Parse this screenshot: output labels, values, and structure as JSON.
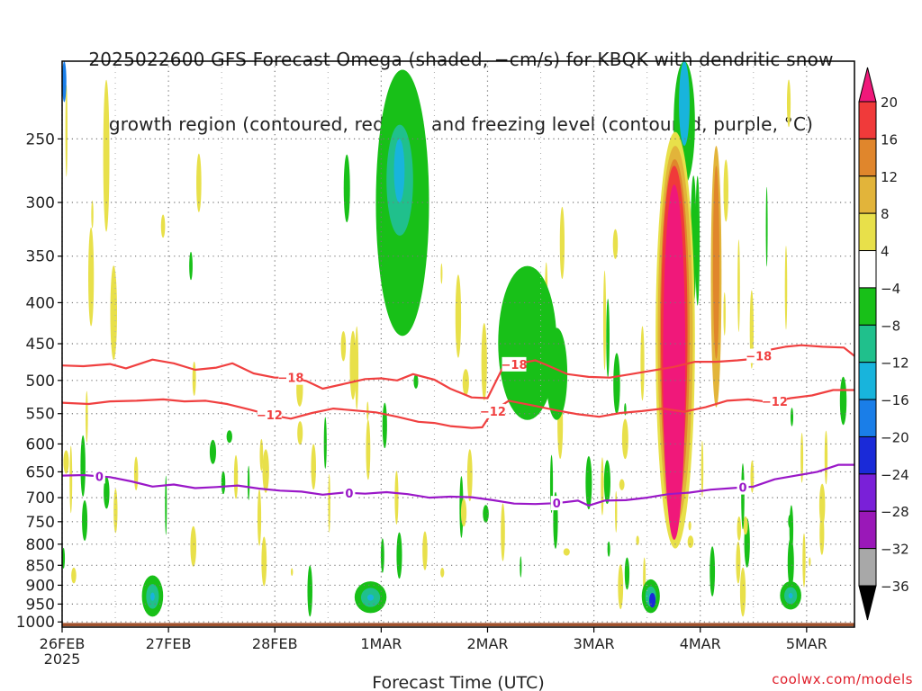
{
  "title_lines": [
    "2025022600 GFS Forecast Omega (shaded, −cm/s) for KBQK with dendritic snow",
    "growth region (contoured, red, °C) and freezing level (contoured, purple, °C)"
  ],
  "credit": "coolwx.com/models",
  "colors": {
    "white": "#ffffff",
    "yellow_4_8": "#e8e04a",
    "gold_8_12": "#e2b43a",
    "orange_12_16": "#e0862c",
    "red_16_20": "#f03a3a",
    "magenta_gt20": "#f0187a",
    "green_m4_m8": "#18c018",
    "seagreen_m8_m12": "#20c08c",
    "cyan_m12_m16": "#18b4dc",
    "blue_m16_m20": "#1a7ee8",
    "darkblue_m20_m24": "#1a2ad8",
    "purple_m24_m28": "#7a20d8",
    "violet_m28_m32": "#9a18b8",
    "gray_m32_m36": "#a8a8a8",
    "black_lt_m36": "#000000",
    "dendritic_line": "#f04040",
    "freezing_line": "#9a18c8",
    "ground": "#a0522d",
    "grid": "#777777"
  },
  "chart_data": {
    "type": "heatmap",
    "title": "2025022600 GFS Forecast Omega (shaded, −cm/s) for KBQK with dendritic snow growth region (contoured, red, °C) and freezing level (contoured, purple, °C)",
    "xlabel": "Forecast Time (UTC)",
    "ylabel": "",
    "x_ticks": [
      "26FEB",
      "27FEB",
      "28FEB",
      "1MAR",
      "2MAR",
      "3MAR",
      "4MAR",
      "5MAR"
    ],
    "x_tick_sub": "2025",
    "x_range_days": [
      0,
      7.45
    ],
    "y_ticks": [
      250,
      300,
      350,
      400,
      450,
      500,
      550,
      600,
      650,
      700,
      750,
      800,
      850,
      900,
      950,
      1000
    ],
    "y_range_hPa": [
      200,
      1015
    ],
    "y_scale": "log-pressure (reversed)",
    "grid": true,
    "colorbar": {
      "labels": [
        "20",
        "16",
        "12",
        "8",
        "4",
        "−4",
        "−8",
        "−12",
        "−16",
        "−20",
        "−24",
        "−28",
        "−32",
        "−36"
      ],
      "bands": [
        {
          "range": ">20",
          "color": "#f0187a"
        },
        {
          "range": "16 to 20",
          "color": "#f03a3a"
        },
        {
          "range": "12 to 16",
          "color": "#e0862c"
        },
        {
          "range": "8 to 12",
          "color": "#e2b43a"
        },
        {
          "range": "4 to 8",
          "color": "#e8e04a"
        },
        {
          "range": "−4 to 4",
          "color": "#ffffff"
        },
        {
          "range": "−8 to −4",
          "color": "#18c018"
        },
        {
          "range": "−12 to −8",
          "color": "#20c08c"
        },
        {
          "range": "−16 to −12",
          "color": "#18b4dc"
        },
        {
          "range": "−20 to −16",
          "color": "#1a7ee8"
        },
        {
          "range": "−24 to −20",
          "color": "#1a2ad8"
        },
        {
          "range": "−28 to −24",
          "color": "#7a20d8"
        },
        {
          "range": "−32 to −28",
          "color": "#9a18b8"
        },
        {
          "range": "−36 to −32",
          "color": "#a8a8a8"
        },
        {
          "range": "<−36",
          "color": "#000000"
        }
      ]
    },
    "contours": [
      {
        "label": "−18",
        "color": "#f04040",
        "label_at_days": [
          2.15,
          4.25,
          6.55
        ],
        "points": [
          [
            0,
            479
          ],
          [
            0.2,
            480
          ],
          [
            0.45,
            477
          ],
          [
            0.6,
            483
          ],
          [
            0.85,
            471
          ],
          [
            1.05,
            476
          ],
          [
            1.25,
            485
          ],
          [
            1.45,
            482
          ],
          [
            1.6,
            476
          ],
          [
            1.8,
            490
          ],
          [
            2.0,
            496
          ],
          [
            2.15,
            496
          ],
          [
            2.3,
            501
          ],
          [
            2.45,
            512
          ],
          [
            2.65,
            505
          ],
          [
            2.85,
            498
          ],
          [
            3.0,
            497
          ],
          [
            3.15,
            500
          ],
          [
            3.3,
            491
          ],
          [
            3.5,
            499
          ],
          [
            3.65,
            512
          ],
          [
            3.85,
            525
          ],
          [
            4.0,
            526
          ],
          [
            4.15,
            480
          ],
          [
            4.3,
            476
          ],
          [
            4.45,
            472
          ],
          [
            4.55,
            478
          ],
          [
            4.75,
            491
          ],
          [
            4.95,
            495
          ],
          [
            5.15,
            496
          ],
          [
            5.35,
            491
          ],
          [
            5.55,
            486
          ],
          [
            5.75,
            481
          ],
          [
            5.95,
            474
          ],
          [
            6.15,
            474
          ],
          [
            6.35,
            472
          ],
          [
            6.5,
            470
          ],
          [
            6.65,
            458
          ],
          [
            6.8,
            454
          ],
          [
            6.95,
            452
          ],
          [
            7.15,
            454
          ],
          [
            7.35,
            455
          ],
          [
            7.45,
            466
          ]
        ]
      },
      {
        "label": "−12",
        "color": "#f04040",
        "label_at_days": [
          1.95,
          4.05,
          6.7
        ],
        "points": [
          [
            0,
            533
          ],
          [
            0.25,
            535
          ],
          [
            0.45,
            531
          ],
          [
            0.7,
            530
          ],
          [
            0.95,
            528
          ],
          [
            1.15,
            531
          ],
          [
            1.35,
            530
          ],
          [
            1.55,
            535
          ],
          [
            1.75,
            543
          ],
          [
            1.95,
            552
          ],
          [
            2.15,
            558
          ],
          [
            2.35,
            549
          ],
          [
            2.55,
            542
          ],
          [
            2.75,
            545
          ],
          [
            2.95,
            548
          ],
          [
            3.15,
            555
          ],
          [
            3.35,
            563
          ],
          [
            3.5,
            565
          ],
          [
            3.65,
            570
          ],
          [
            3.85,
            573
          ],
          [
            3.95,
            572
          ],
          [
            4.05,
            546
          ],
          [
            4.2,
            530
          ],
          [
            4.45,
            538
          ],
          [
            4.65,
            545
          ],
          [
            4.85,
            551
          ],
          [
            5.05,
            555
          ],
          [
            5.25,
            549
          ],
          [
            5.45,
            546
          ],
          [
            5.65,
            542
          ],
          [
            5.85,
            547
          ],
          [
            6.05,
            540
          ],
          [
            6.25,
            530
          ],
          [
            6.45,
            528
          ],
          [
            6.65,
            532
          ],
          [
            6.85,
            526
          ],
          [
            7.05,
            522
          ],
          [
            7.25,
            514
          ],
          [
            7.45,
            514
          ]
        ]
      },
      {
        "label": "0",
        "color": "#9a18c8",
        "label_at_days": [
          0.35,
          2.7,
          4.65,
          6.4
        ],
        "points": [
          [
            0,
            657
          ],
          [
            0.2,
            656
          ],
          [
            0.45,
            660
          ],
          [
            0.65,
            668
          ],
          [
            0.85,
            678
          ],
          [
            1.05,
            674
          ],
          [
            1.25,
            681
          ],
          [
            1.45,
            679
          ],
          [
            1.65,
            676
          ],
          [
            1.85,
            682
          ],
          [
            2.05,
            686
          ],
          [
            2.25,
            688
          ],
          [
            2.45,
            694
          ],
          [
            2.65,
            690
          ],
          [
            2.85,
            692
          ],
          [
            3.05,
            689
          ],
          [
            3.25,
            693
          ],
          [
            3.45,
            700
          ],
          [
            3.65,
            698
          ],
          [
            3.85,
            699
          ],
          [
            4.05,
            705
          ],
          [
            4.25,
            712
          ],
          [
            4.45,
            713
          ],
          [
            4.65,
            711
          ],
          [
            4.85,
            706
          ],
          [
            4.95,
            716
          ],
          [
            5.1,
            706
          ],
          [
            5.3,
            705
          ],
          [
            5.5,
            700
          ],
          [
            5.7,
            693
          ],
          [
            5.9,
            690
          ],
          [
            6.1,
            684
          ],
          [
            6.3,
            681
          ],
          [
            6.5,
            678
          ],
          [
            6.7,
            664
          ],
          [
            6.9,
            657
          ],
          [
            7.1,
            650
          ],
          [
            7.3,
            637
          ],
          [
            7.45,
            637
          ]
        ]
      }
    ],
    "shaded_features": [
      {
        "omega": ">20",
        "x_days": [
          5.62,
          5.9
        ],
        "p_hPa": [
          265,
          790
        ],
        "note": "strong upward motion column"
      },
      {
        "omega": "16 to 20",
        "x_days": [
          5.64,
          5.82
        ],
        "p_hPa": [
          275,
          350
        ]
      },
      {
        "omega": "8 to 16",
        "x_days": [
          5.58,
          5.95
        ],
        "p_hPa": [
          245,
          810
        ]
      },
      {
        "omega": "−4 to −16",
        "x_days": [
          2.95,
          3.45
        ],
        "p_hPa": [
          210,
          420
        ]
      },
      {
        "omega": "−4 to −16",
        "x_days": [
          0.75,
          0.95
        ],
        "p_hPa": [
          875,
          985
        ]
      },
      {
        "omega": "−4 to −16",
        "x_days": [
          2.75,
          3.05
        ],
        "p_hPa": [
          890,
          975
        ]
      },
      {
        "omega": "−4 to −24",
        "x_days": [
          5.45,
          5.62
        ],
        "p_hPa": [
          885,
          975
        ]
      },
      {
        "omega": "−4 to −16",
        "x_days": [
          6.75,
          6.95
        ],
        "p_hPa": [
          890,
          965
        ]
      },
      {
        "omega": "8 to 12",
        "x_days": [
          6.1,
          6.2
        ],
        "p_hPa": [
          255,
          540
        ]
      }
    ]
  }
}
